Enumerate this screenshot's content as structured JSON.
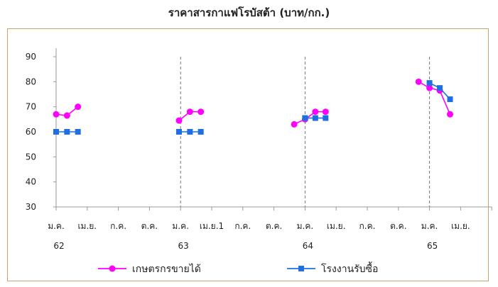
{
  "chart_data": {
    "type": "line",
    "title": "ราคาสารกาแฟโรบัสต้า (บาท/กก.)",
    "ylim": [
      30,
      90
    ],
    "yticks": [
      30,
      40,
      50,
      60,
      70,
      80,
      90
    ],
    "x_month_labels": [
      "ม.ค.",
      "เม.ย.",
      "ก.ค.",
      "ต.ค.",
      "ม.ค.",
      "เม.ย.1",
      "ก.ค.",
      "ต.ค.",
      "ม.ค.",
      "เม.ย.",
      "ก.ค.",
      "ต.ค.",
      "ม.ค.",
      "เม.ย."
    ],
    "x_year_labels": [
      {
        "label": "62",
        "index": 0
      },
      {
        "label": "63",
        "index": 4
      },
      {
        "label": "64",
        "index": 8
      },
      {
        "label": "65",
        "index": 12
      }
    ],
    "year_dividers": [
      4,
      8,
      12
    ],
    "series": [
      {
        "name": "เกษตรกรขายได้",
        "color": "#ff00ff",
        "marker": "circle",
        "segments": [
          [
            [
              0,
              67
            ],
            [
              0.35,
              66.5
            ],
            [
              0.7,
              70
            ]
          ],
          [
            [
              3.95,
              64.5
            ],
            [
              4.3,
              68
            ],
            [
              4.65,
              68
            ]
          ],
          [
            [
              7.65,
              63
            ],
            [
              8.0,
              65
            ],
            [
              8.33,
              68
            ],
            [
              8.66,
              68
            ]
          ],
          [
            [
              11.65,
              80
            ],
            [
              12.0,
              77.5
            ],
            [
              12.33,
              76.5
            ],
            [
              12.66,
              67
            ]
          ]
        ]
      },
      {
        "name": "โรงงานรับซื้อ",
        "color": "#1f6fe0",
        "marker": "square",
        "segments": [
          [
            [
              0,
              60
            ],
            [
              0.35,
              60
            ],
            [
              0.7,
              60
            ]
          ],
          [
            [
              3.95,
              60
            ],
            [
              4.3,
              60
            ],
            [
              4.65,
              60
            ]
          ],
          [
            [
              8.0,
              65.5
            ],
            [
              8.33,
              65.5
            ],
            [
              8.66,
              65.5
            ]
          ],
          [
            [
              12.0,
              79.5
            ],
            [
              12.33,
              77.5
            ],
            [
              12.66,
              73
            ]
          ]
        ]
      }
    ],
    "legend_position": "bottom"
  }
}
